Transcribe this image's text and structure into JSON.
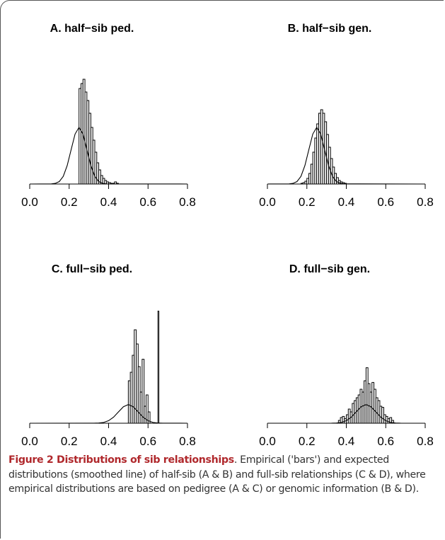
{
  "chart_data": [
    {
      "type": "histogram",
      "title": "A. half−sib ped.",
      "bins": [
        0.25,
        0.26,
        0.27,
        0.28,
        0.29,
        0.3,
        0.31,
        0.32,
        0.33,
        0.34,
        0.35,
        0.36,
        0.37,
        0.38,
        0.39,
        0.4,
        0.41,
        0.42,
        0.43,
        0.44,
        0.45
      ],
      "values": [
        135,
        142,
        148,
        130,
        118,
        100,
        80,
        62,
        45,
        30,
        20,
        12,
        8,
        5,
        3,
        2,
        1,
        1,
        3,
        1
      ],
      "curve": {
        "x": [
          0,
          0.11,
          0.13,
          0.15,
          0.17,
          0.19,
          0.21,
          0.23,
          0.25,
          0.27,
          0.29,
          0.31,
          0.33,
          0.35,
          0.37,
          0.39,
          0.8
        ],
        "y": [
          0,
          0.2,
          0.9,
          3.5,
          10.8,
          26,
          48.5,
          70.6,
          80,
          70.6,
          48.5,
          26,
          10.8,
          3.5,
          0.9,
          0.2,
          0
        ]
      },
      "xlim": [
        0,
        0.8
      ],
      "ylim": [
        0,
        160
      ],
      "xticks": [
        {
          "value": 0,
          "label": "0.0"
        },
        0.2,
        0.4,
        0.6,
        0.8
      ]
    },
    {
      "type": "histogram",
      "title": "B. half−sib gen.",
      "bins": [
        0.17,
        0.18,
        0.19,
        0.2,
        0.21,
        0.22,
        0.23,
        0.24,
        0.25,
        0.26,
        0.27,
        0.28,
        0.29,
        0.3,
        0.31,
        0.32,
        0.33,
        0.34,
        0.35,
        0.36,
        0.37,
        0.38,
        0.39,
        0.4
      ],
      "values": [
        1,
        2,
        4,
        8,
        15,
        28,
        45,
        65,
        85,
        100,
        105,
        100,
        88,
        70,
        52,
        36,
        24,
        15,
        9,
        5,
        3,
        2,
        1
      ],
      "curve": {
        "x": [
          0,
          0.11,
          0.13,
          0.15,
          0.17,
          0.19,
          0.21,
          0.23,
          0.25,
          0.27,
          0.29,
          0.31,
          0.33,
          0.35,
          0.37,
          0.39,
          0.8
        ],
        "y": [
          0,
          0.2,
          0.9,
          3.5,
          10.8,
          26,
          48.5,
          70.6,
          80,
          70.6,
          48.5,
          26,
          10.8,
          3.5,
          0.9,
          0.2,
          0
        ]
      },
      "xlim": [
        0,
        0.8
      ],
      "ylim": [
        0,
        160
      ],
      "xticks": [
        {
          "value": 0,
          "label": "0.0"
        },
        0.2,
        0.4,
        0.6,
        0.8
      ]
    },
    {
      "type": "histogram",
      "title": "C. full−sib ped.",
      "bins": [
        0.5,
        0.51,
        0.52,
        0.53,
        0.54,
        0.55,
        0.56,
        0.57,
        0.58,
        0.59,
        0.6,
        0.61,
        0.62,
        0.63,
        0.64,
        0.65,
        0.655
      ],
      "values": [
        75,
        90,
        120,
        165,
        140,
        100,
        55,
        113,
        30,
        50,
        20,
        0,
        0,
        0,
        0,
        198
      ],
      "curve": {
        "x": [
          0,
          0.325,
          0.35,
          0.375,
          0.4,
          0.425,
          0.45,
          0.475,
          0.5,
          0.525,
          0.55,
          0.575,
          0.6,
          0.625,
          0.65,
          0.675,
          0.8
        ],
        "y": [
          0,
          0.1,
          0.4,
          1.4,
          4.5,
          10.7,
          20,
          29.1,
          33,
          29.1,
          20,
          10.7,
          4.5,
          1.4,
          0.4,
          0.1,
          0
        ]
      },
      "xlim": [
        0,
        0.8
      ],
      "ylim": [
        0,
        200
      ],
      "xticks": [
        {
          "value": 0,
          "label": "0.0"
        },
        0.2,
        0.4,
        0.6,
        0.8
      ]
    },
    {
      "type": "histogram",
      "title": "D. full−sib gen.",
      "bins": [
        0.36,
        0.37,
        0.38,
        0.39,
        0.4,
        0.41,
        0.42,
        0.43,
        0.44,
        0.45,
        0.46,
        0.47,
        0.48,
        0.49,
        0.5,
        0.51,
        0.52,
        0.53,
        0.54,
        0.55,
        0.56,
        0.57,
        0.58,
        0.59,
        0.6,
        0.61,
        0.62,
        0.63,
        0.64
      ],
      "values": [
        5,
        10,
        12,
        8,
        15,
        25,
        20,
        35,
        40,
        45,
        50,
        60,
        55,
        75,
        98,
        70,
        55,
        72,
        60,
        45,
        40,
        30,
        28,
        15,
        12,
        8,
        10,
        5
      ],
      "curve": {
        "x": [
          0,
          0.325,
          0.35,
          0.375,
          0.4,
          0.425,
          0.45,
          0.475,
          0.5,
          0.525,
          0.55,
          0.575,
          0.6,
          0.625,
          0.65,
          0.675,
          0.8
        ],
        "y": [
          0,
          0.1,
          0.4,
          1.4,
          4.5,
          10.7,
          20,
          29.1,
          33,
          29.1,
          20,
          10.7,
          4.5,
          1.4,
          0.4,
          0.1,
          0
        ]
      },
      "xlim": [
        0,
        0.8
      ],
      "ylim": [
        0,
        200
      ],
      "xticks": [
        {
          "value": 0,
          "label": "0.0"
        },
        0.2,
        0.4,
        0.6,
        0.8
      ]
    }
  ],
  "caption": {
    "label": "Figure 2 Distributions of sib relationships",
    "text": ". Empirical ('bars') and expected distributions (smoothed line) of half-sib (A & B) and full-sib relationships (C & D), where empirical distributions are based on pedigree (A & C) or genomic information (B & D)."
  }
}
